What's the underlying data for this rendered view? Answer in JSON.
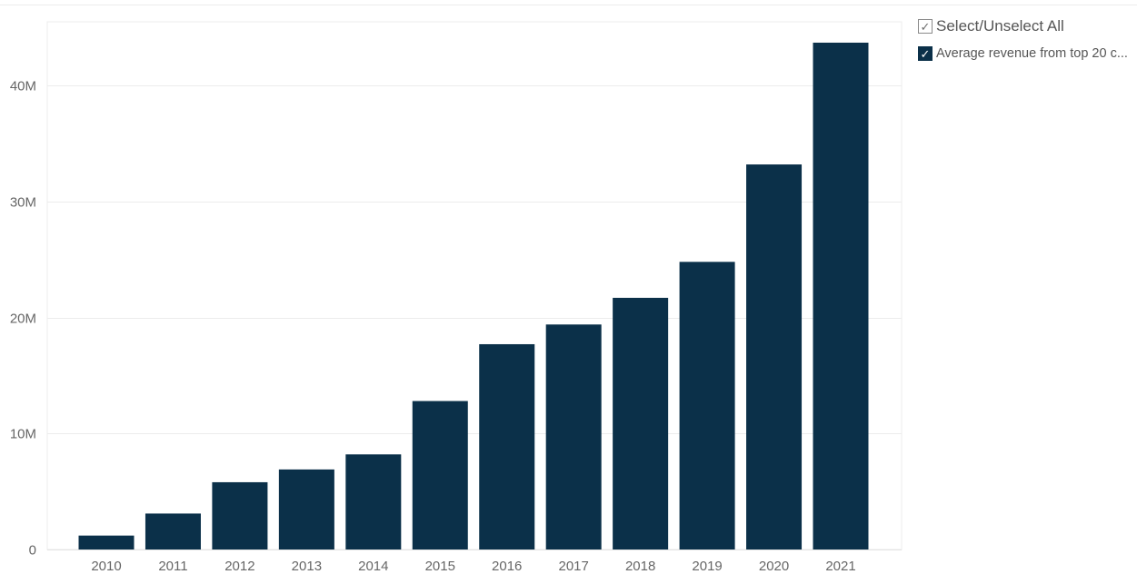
{
  "legend": {
    "select_all_label": "Select/Unselect All",
    "check_glyph": "✓",
    "series_label": "Average revenue from top 20 c..."
  },
  "colors": {
    "bar": "#0b3049",
    "grid": "#ececec",
    "axis_text": "#666666"
  },
  "chart_data": {
    "type": "bar",
    "title": "",
    "xlabel": "",
    "ylabel": "",
    "categories": [
      "2010",
      "2011",
      "2012",
      "2013",
      "2014",
      "2015",
      "2016",
      "2017",
      "2018",
      "2019",
      "2020",
      "2021"
    ],
    "values": [
      1200000,
      3100000,
      5800000,
      6900000,
      8200000,
      12800000,
      17700000,
      19400000,
      21700000,
      24800000,
      33200000,
      43700000
    ],
    "ylim": [
      0,
      45500000
    ],
    "yticks": [
      0,
      10000000,
      20000000,
      30000000,
      40000000
    ],
    "ytick_labels": [
      "0",
      "10M",
      "20M",
      "30M",
      "40M"
    ],
    "grid": true,
    "legend_position": "top-right"
  }
}
